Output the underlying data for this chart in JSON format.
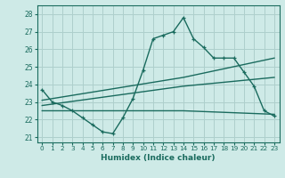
{
  "xlabel": "Humidex (Indice chaleur)",
  "background_color": "#ceeae7",
  "grid_color": "#aecfcc",
  "line_color": "#1a6b5e",
  "xlim": [
    -0.5,
    23.5
  ],
  "ylim": [
    20.7,
    28.5
  ],
  "yticks": [
    21,
    22,
    23,
    24,
    25,
    26,
    27,
    28
  ],
  "xticks": [
    0,
    1,
    2,
    3,
    4,
    5,
    6,
    7,
    8,
    9,
    10,
    11,
    12,
    13,
    14,
    15,
    16,
    17,
    18,
    19,
    20,
    21,
    22,
    23
  ],
  "line1_x": [
    0,
    1,
    2,
    3,
    4,
    5,
    6,
    7,
    8,
    9,
    10,
    11,
    12,
    13,
    14,
    15,
    16,
    17,
    18,
    19,
    20,
    21,
    22,
    23
  ],
  "line1_y": [
    23.7,
    23.0,
    22.8,
    22.5,
    22.1,
    21.7,
    21.3,
    21.2,
    22.1,
    23.2,
    24.8,
    26.6,
    26.8,
    27.0,
    27.8,
    26.6,
    26.1,
    25.5,
    25.5,
    25.5,
    24.7,
    23.9,
    22.5,
    22.2
  ],
  "line2_x": [
    0,
    14,
    23
  ],
  "line2_y": [
    23.1,
    24.4,
    25.5
  ],
  "line3_x": [
    0,
    14,
    23
  ],
  "line3_y": [
    22.8,
    23.9,
    24.4
  ],
  "line4_x": [
    0,
    14,
    23
  ],
  "line4_y": [
    22.5,
    22.5,
    22.3
  ]
}
